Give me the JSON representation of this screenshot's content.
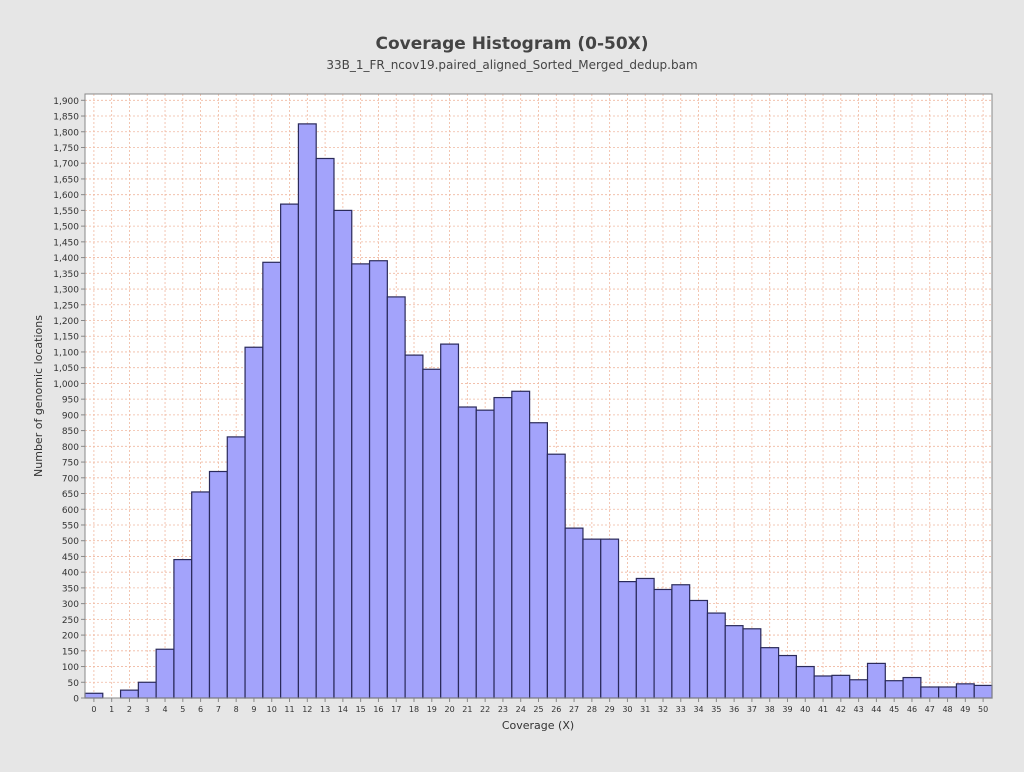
{
  "chart_data": {
    "type": "bar",
    "title": "Coverage Histogram (0-50X)",
    "subtitle": "33B_1_FR_ncov19.paired_aligned_Sorted_Merged_dedup.bam",
    "xlabel": "Coverage (X)",
    "ylabel": "Number of genomic locations",
    "ylim": [
      0,
      1920
    ],
    "y_tick_step": 50,
    "grid": true,
    "legend": "none",
    "categories": [
      "0",
      "1",
      "2",
      "3",
      "4",
      "5",
      "6",
      "7",
      "8",
      "9",
      "10",
      "11",
      "12",
      "13",
      "14",
      "15",
      "16",
      "17",
      "18",
      "19",
      "20",
      "21",
      "22",
      "23",
      "24",
      "25",
      "26",
      "27",
      "28",
      "29",
      "30",
      "31",
      "32",
      "33",
      "34",
      "35",
      "36",
      "37",
      "38",
      "39",
      "40",
      "41",
      "42",
      "43",
      "44",
      "45",
      "46",
      "47",
      "48",
      "49",
      "50"
    ],
    "values": [
      15,
      0,
      25,
      50,
      155,
      440,
      655,
      720,
      830,
      1115,
      1385,
      1570,
      1825,
      1715,
      1550,
      1380,
      1390,
      1275,
      1090,
      1045,
      1125,
      925,
      915,
      955,
      975,
      875,
      775,
      540,
      505,
      505,
      370,
      380,
      345,
      360,
      310,
      270,
      230,
      220,
      160,
      135,
      100,
      70,
      72,
      58,
      110,
      55,
      65,
      35,
      35,
      45,
      40
    ],
    "colors": {
      "bar_fill": "#a3a3fb",
      "bar_stroke": "#2a2a5a",
      "grid": "#f0b8a0",
      "plot_bg": "#ffffff",
      "page_bg": "#e6e6e6",
      "text": "#333333"
    }
  }
}
